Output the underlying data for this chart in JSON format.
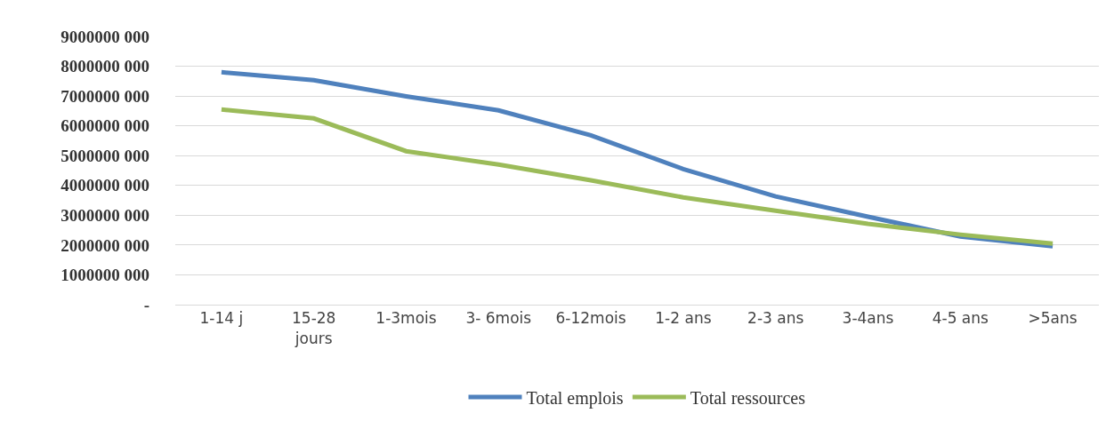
{
  "chart_data": {
    "type": "line",
    "categories": [
      "1-14 j",
      "15-28 jours",
      "1-3mois",
      "3- 6mois",
      "6-12mois",
      "1-2 ans",
      "2-3 ans",
      "3-4ans",
      "4-5 ans",
      ">5ans"
    ],
    "series": [
      {
        "name": "Total emplois",
        "color": "#4f81bd",
        "values": [
          7800000000,
          7530000000,
          6990000000,
          6520000000,
          5680000000,
          4550000000,
          3630000000,
          2950000000,
          2290000000,
          1960000000
        ]
      },
      {
        "name": "Total ressources",
        "color": "#9bbb59",
        "values": [
          6550000000,
          6250000000,
          5150000000,
          4700000000,
          4170000000,
          3600000000,
          3150000000,
          2710000000,
          2350000000,
          2050000000
        ]
      }
    ],
    "ylim": [
      0,
      9000000000
    ],
    "yticks": [
      {
        "value": 0,
        "label": "-"
      },
      {
        "value": 1000000000,
        "label": "1000000 000"
      },
      {
        "value": 2000000000,
        "label": "2000000 000"
      },
      {
        "value": 3000000000,
        "label": "3000000 000"
      },
      {
        "value": 4000000000,
        "label": "4000000 000"
      },
      {
        "value": 5000000000,
        "label": "5000000 000"
      },
      {
        "value": 6000000000,
        "label": "6000000 000"
      },
      {
        "value": 7000000000,
        "label": "7000000 000"
      },
      {
        "value": 8000000000,
        "label": "8000000 000"
      },
      {
        "value": 9000000000,
        "label": "9000000 000"
      }
    ],
    "grid": "y",
    "legend": "bottom",
    "marker": "none",
    "line_style": "solid"
  }
}
